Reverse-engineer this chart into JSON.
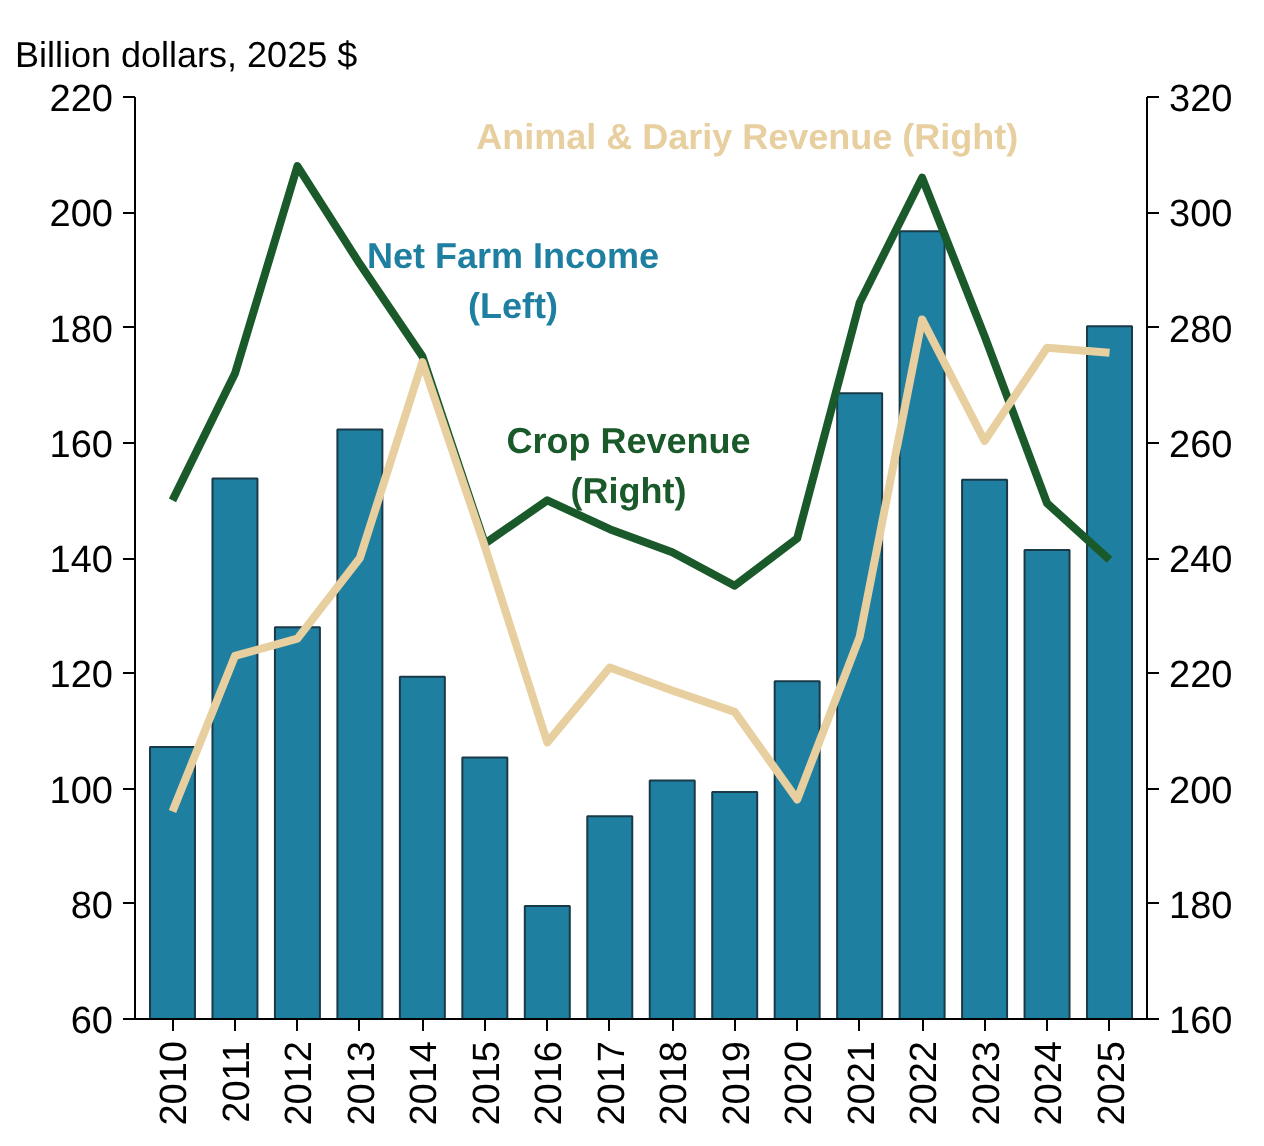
{
  "chart_data": {
    "type": "bar",
    "title": "Billion dollars, 2025 $",
    "categories": [
      "2010",
      "2011",
      "2012",
      "2013",
      "2014",
      "2015",
      "2016",
      "2017",
      "2018",
      "2019",
      "2020",
      "2021",
      "2022",
      "2023",
      "2024",
      "2025"
    ],
    "series": [
      {
        "name": "Net Farm Income\n(Left)",
        "color": "#1f7fa0",
        "values": [
          107.2,
          153.8,
          128,
          162.3,
          119.4,
          105.4,
          79.6,
          95.2,
          101.4,
          99.4,
          118.6,
          168.6,
          196.7,
          153.6,
          141.4,
          180.2
        ]
      },
      {
        "name": "Crop Revenue\n(Right)",
        "type": "line",
        "axis": "y2",
        "color": "#1a5a2a",
        "values": [
          250,
          272,
          308,
          291,
          275,
          242.5,
          250,
          245,
          241,
          235.2,
          243.4,
          284.3,
          306,
          278.5,
          249.5,
          239.7
        ]
      },
      {
        "name": "Animal & Dariy Revenue (Right)",
        "type": "line",
        "axis": "y2",
        "color": "#e8cf9f",
        "values": [
          196,
          223,
          226,
          240,
          274,
          242,
          208,
          221,
          217,
          213.3,
          198.1,
          226.3,
          281.4,
          260.3,
          276.5,
          275.6
        ]
      }
    ],
    "ylim": [
      60,
      220
    ],
    "yticks": [
      60,
      80,
      100,
      120,
      140,
      160,
      180,
      200,
      220
    ],
    "y2lim": [
      160,
      320
    ],
    "y2ticks": [
      160,
      180,
      200,
      220,
      240,
      260,
      280,
      300,
      320
    ],
    "grid": false
  }
}
